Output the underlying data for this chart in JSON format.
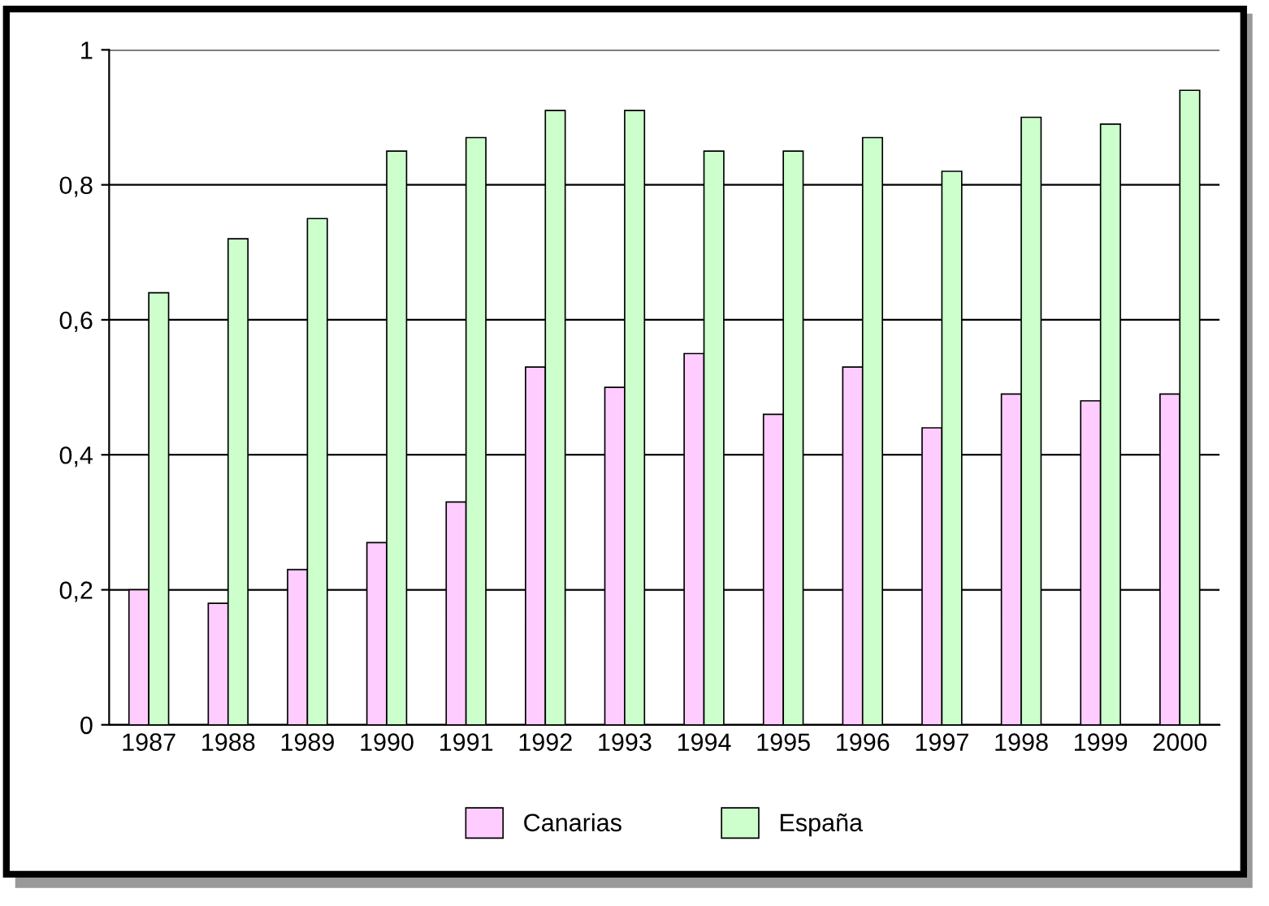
{
  "chart_data": {
    "type": "bar",
    "categories": [
      "1987",
      "1988",
      "1989",
      "1990",
      "1991",
      "1992",
      "1993",
      "1994",
      "1995",
      "1996",
      "1997",
      "1998",
      "1999",
      "2000"
    ],
    "series": [
      {
        "name": "Canarias",
        "color": "#ffccff",
        "values": [
          0.2,
          0.18,
          0.23,
          0.27,
          0.33,
          0.53,
          0.5,
          0.55,
          0.46,
          0.53,
          0.44,
          0.49,
          0.48,
          0.49
        ]
      },
      {
        "name": "España",
        "color": "#ccffcc",
        "values": [
          0.64,
          0.72,
          0.75,
          0.85,
          0.87,
          0.91,
          0.91,
          0.85,
          0.85,
          0.87,
          0.82,
          0.9,
          0.89,
          0.94
        ]
      }
    ],
    "ylim": [
      0,
      1
    ],
    "yticks": [
      0,
      {
        "value": 0.2,
        "label": "0,2"
      },
      {
        "value": 0.4,
        "label": "0,4"
      },
      {
        "value": 0.6,
        "label": "0,6"
      },
      {
        "value": 0.8,
        "label": "0,8"
      },
      1
    ],
    "grid": "y",
    "legend": "bottom"
  }
}
